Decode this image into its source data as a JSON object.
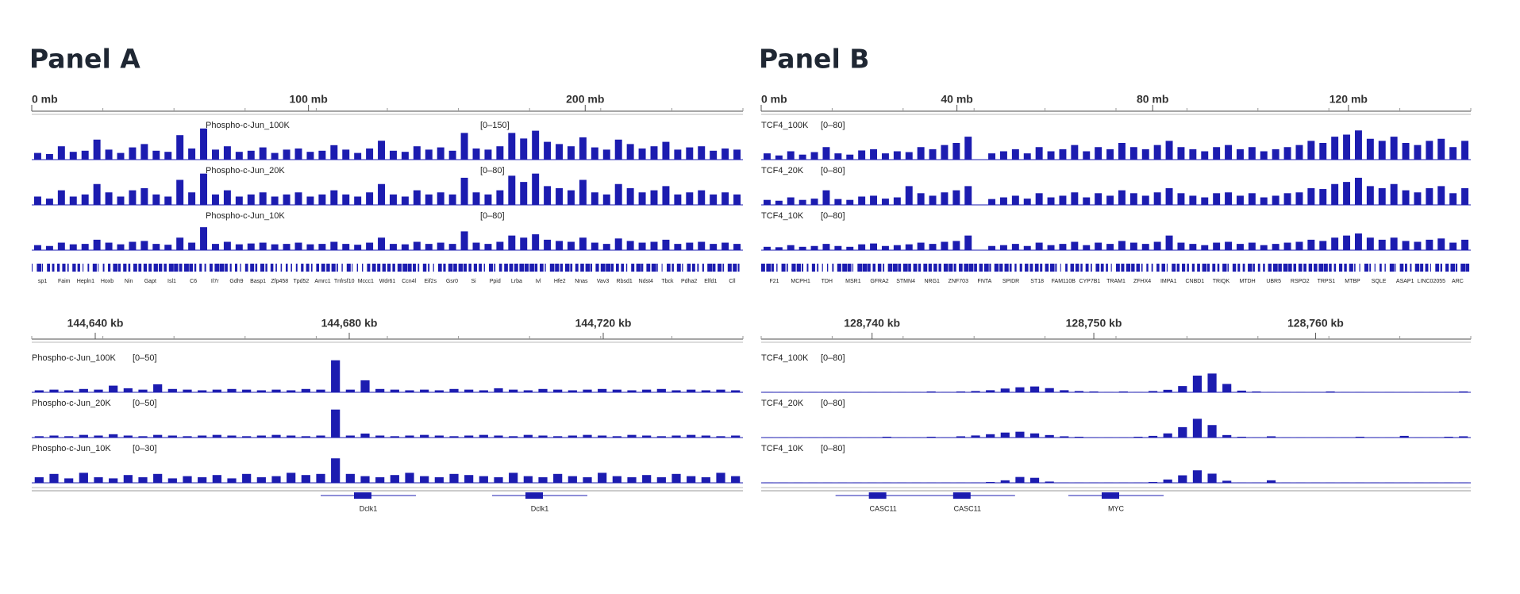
{
  "panels": [
    {
      "title": "Panel A",
      "overview": {
        "ruler": {
          "xlim": [
            0,
            257
          ],
          "ticks": [
            {
              "value": 0,
              "label": "0 mb"
            },
            {
              "value": 100,
              "label": "100 mb"
            },
            {
              "value": 200,
              "label": "200 mb"
            }
          ]
        },
        "tracks": [
          {
            "name": "Phospho-c-Jun_100K",
            "range": {
              "min": 0,
              "max": 150,
              "label": "[0–150]"
            },
            "values": [
              30,
              25,
              60,
              35,
              40,
              90,
              45,
              30,
              55,
              70,
              40,
              35,
              110,
              50,
              140,
              45,
              60,
              35,
              40,
              55,
              30,
              45,
              50,
              35,
              40,
              65,
              45,
              30,
              50,
              85,
              40,
              35,
              60,
              45,
              55,
              40,
              120,
              50,
              45,
              60,
              120,
              95,
              130,
              80,
              70,
              60,
              100,
              55,
              45,
              90,
              70,
              50,
              60,
              80,
              45,
              55,
              60,
              40,
              50,
              45
            ]
          },
          {
            "name": "Phospho-c-Jun_20K",
            "range": {
              "min": 0,
              "max": 80,
              "label": "[0–80]"
            },
            "values": [
              20,
              15,
              35,
              20,
              25,
              50,
              30,
              20,
              35,
              40,
              25,
              20,
              60,
              30,
              75,
              25,
              35,
              20,
              25,
              30,
              20,
              25,
              30,
              20,
              25,
              35,
              25,
              20,
              30,
              50,
              25,
              20,
              35,
              25,
              30,
              25,
              65,
              30,
              25,
              35,
              70,
              55,
              75,
              45,
              40,
              35,
              60,
              30,
              25,
              50,
              40,
              30,
              35,
              45,
              25,
              30,
              35,
              25,
              30,
              25
            ]
          },
          {
            "name": "Phospho-c-Jun_10K",
            "range": {
              "min": 0,
              "max": 80,
              "label": "[0–80]"
            },
            "values": [
              12,
              10,
              18,
              14,
              15,
              25,
              18,
              14,
              20,
              22,
              15,
              13,
              30,
              18,
              55,
              15,
              20,
              14,
              16,
              18,
              14,
              15,
              18,
              14,
              15,
              20,
              15,
              13,
              18,
              30,
              15,
              14,
              20,
              15,
              18,
              15,
              45,
              18,
              15,
              20,
              35,
              30,
              38,
              25,
              22,
              20,
              30,
              18,
              15,
              28,
              22,
              18,
              20,
              25,
              15,
              18,
              20,
              15,
              18,
              15
            ]
          }
        ],
        "genes": [
          "sp1",
          "Faim",
          "Hepln1",
          "Hoxb",
          "Nin",
          "Gapt",
          "Isl1",
          "C6",
          "Il7r",
          "Gdh9",
          "Basp1",
          "Zfp458",
          "Tpd52",
          "Amrc1",
          "Tnfrsf10",
          "Mccc1",
          "Wdr61",
          "Ccn4l",
          "Eif2s",
          "Gsr0",
          "Si",
          "Ppid",
          "Lrba",
          "Ivl",
          "Hfe2",
          "Nnas",
          "Vav3",
          "Rbsd1",
          "Ndst4",
          "Tbck",
          "Pdha2",
          "Elfd1",
          "Cll"
        ]
      },
      "zoom": {
        "ruler": {
          "xlim": [
            144630,
            144742
          ],
          "ticks": [
            {
              "value": 144640,
              "label": "144,640 kb"
            },
            {
              "value": 144680,
              "label": "144,680 kb"
            },
            {
              "value": 144720,
              "label": "144,720 kb"
            }
          ]
        },
        "tracks": [
          {
            "name": "Phospho-c-Jun_100K",
            "range": {
              "min": 0,
              "max": 50,
              "label": "[0–50]"
            },
            "values": [
              3,
              4,
              3,
              5,
              4,
              10,
              6,
              4,
              12,
              5,
              4,
              3,
              4,
              5,
              4,
              3,
              4,
              3,
              5,
              4,
              48,
              4,
              18,
              5,
              4,
              3,
              4,
              3,
              5,
              4,
              3,
              6,
              4,
              3,
              5,
              4,
              3,
              4,
              5,
              4,
              3,
              4,
              5,
              3,
              4,
              3,
              4,
              3
            ]
          },
          {
            "name": "Phospho-c-Jun_20K",
            "range": {
              "min": 0,
              "max": 50,
              "label": "[0–50]"
            },
            "values": [
              2,
              3,
              2,
              4,
              3,
              5,
              3,
              2,
              4,
              3,
              2,
              3,
              4,
              3,
              2,
              3,
              4,
              3,
              2,
              3,
              42,
              3,
              6,
              3,
              2,
              3,
              4,
              3,
              2,
              3,
              4,
              3,
              2,
              4,
              3,
              2,
              3,
              4,
              3,
              2,
              4,
              3,
              2,
              3,
              4,
              3,
              2,
              3
            ]
          },
          {
            "name": "Phospho-c-Jun_10K",
            "range": {
              "min": 0,
              "max": 30,
              "label": "[0–30]"
            },
            "values": [
              5,
              8,
              4,
              9,
              5,
              4,
              7,
              5,
              8,
              4,
              6,
              5,
              7,
              4,
              8,
              5,
              6,
              9,
              7,
              8,
              22,
              8,
              6,
              5,
              7,
              9,
              6,
              5,
              8,
              7,
              6,
              5,
              9,
              6,
              5,
              8,
              6,
              5,
              9,
              6,
              5,
              7,
              5,
              8,
              6,
              5,
              9,
              6
            ]
          }
        ],
        "genes": [
          {
            "name": "Dclk1",
            "pos": 144683
          },
          {
            "name": "Dclk1",
            "pos": 144710
          }
        ]
      }
    },
    {
      "title": "Panel B",
      "overview": {
        "ruler": {
          "xlim": [
            0,
            145
          ],
          "ticks": [
            {
              "value": 0,
              "label": "0 mb"
            },
            {
              "value": 40,
              "label": "40 mb"
            },
            {
              "value": 80,
              "label": "80 mb"
            },
            {
              "value": 120,
              "label": "120 mb"
            }
          ]
        },
        "tracks": [
          {
            "name": "TCF4_100K",
            "range": {
              "min": 0,
              "max": 80,
              "label": "[0–80]"
            },
            "values": [
              15,
              10,
              20,
              12,
              18,
              30,
              15,
              12,
              22,
              25,
              15,
              20,
              18,
              30,
              25,
              35,
              40,
              55,
              null,
              15,
              20,
              25,
              15,
              30,
              20,
              25,
              35,
              20,
              30,
              25,
              40,
              30,
              25,
              35,
              45,
              30,
              25,
              20,
              30,
              35,
              25,
              30,
              20,
              25,
              30,
              35,
              45,
              40,
              55,
              60,
              70,
              50,
              45,
              55,
              40,
              35,
              45,
              50,
              30,
              45
            ]
          },
          {
            "name": "TCF4_20K",
            "range": {
              "min": 0,
              "max": 80,
              "label": "[0–80]"
            },
            "values": [
              12,
              10,
              18,
              12,
              15,
              35,
              14,
              12,
              20,
              22,
              15,
              18,
              45,
              28,
              22,
              30,
              35,
              45,
              null,
              14,
              18,
              22,
              15,
              28,
              18,
              22,
              30,
              18,
              28,
              22,
              35,
              28,
              22,
              30,
              40,
              28,
              22,
              18,
              28,
              30,
              22,
              28,
              18,
              22,
              28,
              30,
              40,
              38,
              50,
              55,
              65,
              45,
              40,
              50,
              35,
              30,
              40,
              45,
              28,
              40
            ]
          },
          {
            "name": "TCF4_10K",
            "range": {
              "min": 0,
              "max": 80,
              "label": "[0–80]"
            },
            "values": [
              8,
              7,
              12,
              8,
              10,
              15,
              10,
              8,
              14,
              16,
              10,
              12,
              14,
              18,
              15,
              20,
              22,
              35,
              null,
              10,
              12,
              15,
              10,
              18,
              12,
              15,
              20,
              12,
              18,
              15,
              22,
              18,
              15,
              20,
              35,
              18,
              15,
              12,
              18,
              20,
              15,
              18,
              12,
              15,
              18,
              20,
              25,
              22,
              30,
              35,
              40,
              30,
              25,
              30,
              22,
              20,
              25,
              28,
              18,
              25
            ]
          }
        ],
        "genes": [
          "F21",
          "MCPH1",
          "TDH",
          "MSR1",
          "GFRA2",
          "STMN4",
          "NRG1",
          "ZNF703",
          "FNTA",
          "SPIDR",
          "ST18",
          "FAM110B",
          "CYP7B1",
          "TRAM1",
          "ZFHX4",
          "IMPA1",
          "CNBD1",
          "TRIQK",
          "MTDH",
          "UBR5",
          "RSPO2",
          "TRPS1",
          "MTBP",
          "SQLE",
          "ASAP1",
          "LINC02055",
          "ARC"
        ]
      },
      "zoom": {
        "ruler": {
          "xlim": [
            128735,
            128767
          ],
          "ticks": [
            {
              "value": 128740,
              "label": "128,740 kb"
            },
            {
              "value": 128750,
              "label": "128,750 kb"
            },
            {
              "value": 128760,
              "label": "128,760 kb"
            }
          ]
        },
        "tracks": [
          {
            "name": "TCF4_100K",
            "range": {
              "min": 0,
              "max": 80,
              "label": "[0–80]"
            },
            "values": [
              1,
              1,
              1,
              1,
              1,
              1,
              1,
              1,
              1,
              1,
              1,
              2,
              1,
              2,
              3,
              5,
              9,
              12,
              14,
              10,
              5,
              3,
              2,
              1,
              2,
              1,
              3,
              6,
              15,
              40,
              45,
              20,
              4,
              2,
              1,
              1,
              1,
              1,
              2,
              1,
              1,
              1,
              1,
              1,
              1,
              1,
              1,
              2
            ]
          },
          {
            "name": "TCF4_20K",
            "range": {
              "min": 0,
              "max": 80,
              "label": "[0–80]"
            },
            "values": [
              1,
              1,
              1,
              1,
              1,
              1,
              1,
              1,
              2,
              1,
              1,
              2,
              1,
              3,
              5,
              8,
              12,
              14,
              10,
              6,
              3,
              2,
              1,
              1,
              1,
              2,
              4,
              10,
              25,
              45,
              30,
              6,
              2,
              1,
              3,
              1,
              1,
              1,
              1,
              1,
              2,
              1,
              1,
              4,
              1,
              1,
              2,
              3
            ]
          },
          {
            "name": "TCF4_10K",
            "range": {
              "min": 0,
              "max": 80,
              "label": "[0–80]"
            },
            "values": [
              1,
              1,
              1,
              1,
              1,
              1,
              1,
              1,
              1,
              1,
              1,
              1,
              1,
              1,
              1,
              2,
              6,
              14,
              12,
              3,
              1,
              1,
              1,
              1,
              1,
              1,
              2,
              8,
              18,
              30,
              22,
              5,
              1,
              1,
              6,
              1,
              1,
              1,
              1,
              1,
              1,
              1,
              1,
              1,
              1,
              1,
              1,
              1
            ]
          }
        ],
        "genes": [
          {
            "name": "CASC11",
            "pos": 128740.5
          },
          {
            "name": "CASC11",
            "pos": 128744.3
          },
          {
            "name": "MYC",
            "pos": 128751
          }
        ]
      }
    }
  ]
}
